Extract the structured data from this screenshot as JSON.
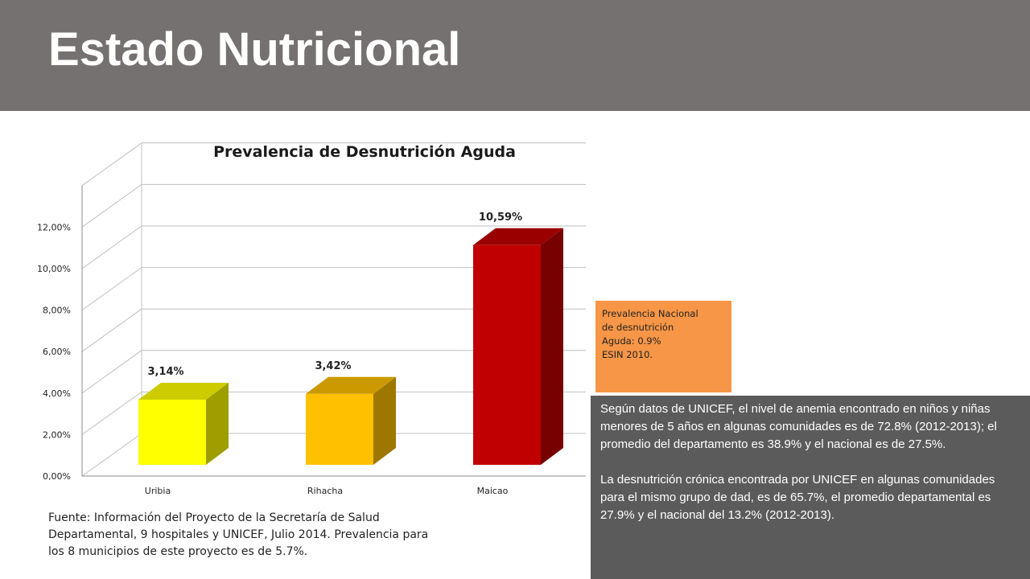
{
  "header": {
    "title": "Estado Nutricional"
  },
  "chart_data": {
    "type": "bar",
    "title": "Prevalencia de Desnutrición Aguda",
    "categories": [
      "Uribia",
      "Rihacha",
      "Maicao"
    ],
    "values": [
      3.14,
      3.42,
      10.59
    ],
    "data_labels": [
      "3,14%",
      "3,42%",
      "10,59%"
    ],
    "ylim": [
      0,
      14
    ],
    "yticks": [
      0,
      2,
      4,
      6,
      8,
      10,
      12
    ],
    "ytick_labels": [
      "0,00%",
      "2,00%",
      "4,00%",
      "6,00%",
      "8,00%",
      "10,00%",
      "12,00%"
    ],
    "colors": [
      "#ffff00",
      "#ffc000",
      "#c00000"
    ],
    "grid": true,
    "legend": false
  },
  "national_box": {
    "lines": [
      "Prevalencia  Nacional",
      "de desnutrición",
      "Aguda: 0.9%",
      "ESIN 2010."
    ]
  },
  "info_box": {
    "paragraph1": "Según datos de UNICEF, el nivel de anemia encontrado en  niños y niñas menores de 5 años en algunas comunidades es de 72.8% (2012-2013); el promedio del departamento es 38.9%  y el  nacional es de 27.5%.",
    "paragraph2": "La desnutrición crónica encontrada por UNICEF en algunas comunidades para el mismo grupo de dad, es de  65.7%, el promedio departamental es  27.9% y el nacional del 13.2% (2012-2013)."
  },
  "source_note": "Fuente: Información del Proyecto de la Secretaría de Salud Departamental, 9 hospitales y UNICEF, Julio 2014. Prevalencia para los 8 municipios de este proyecto es  de 5.7%."
}
